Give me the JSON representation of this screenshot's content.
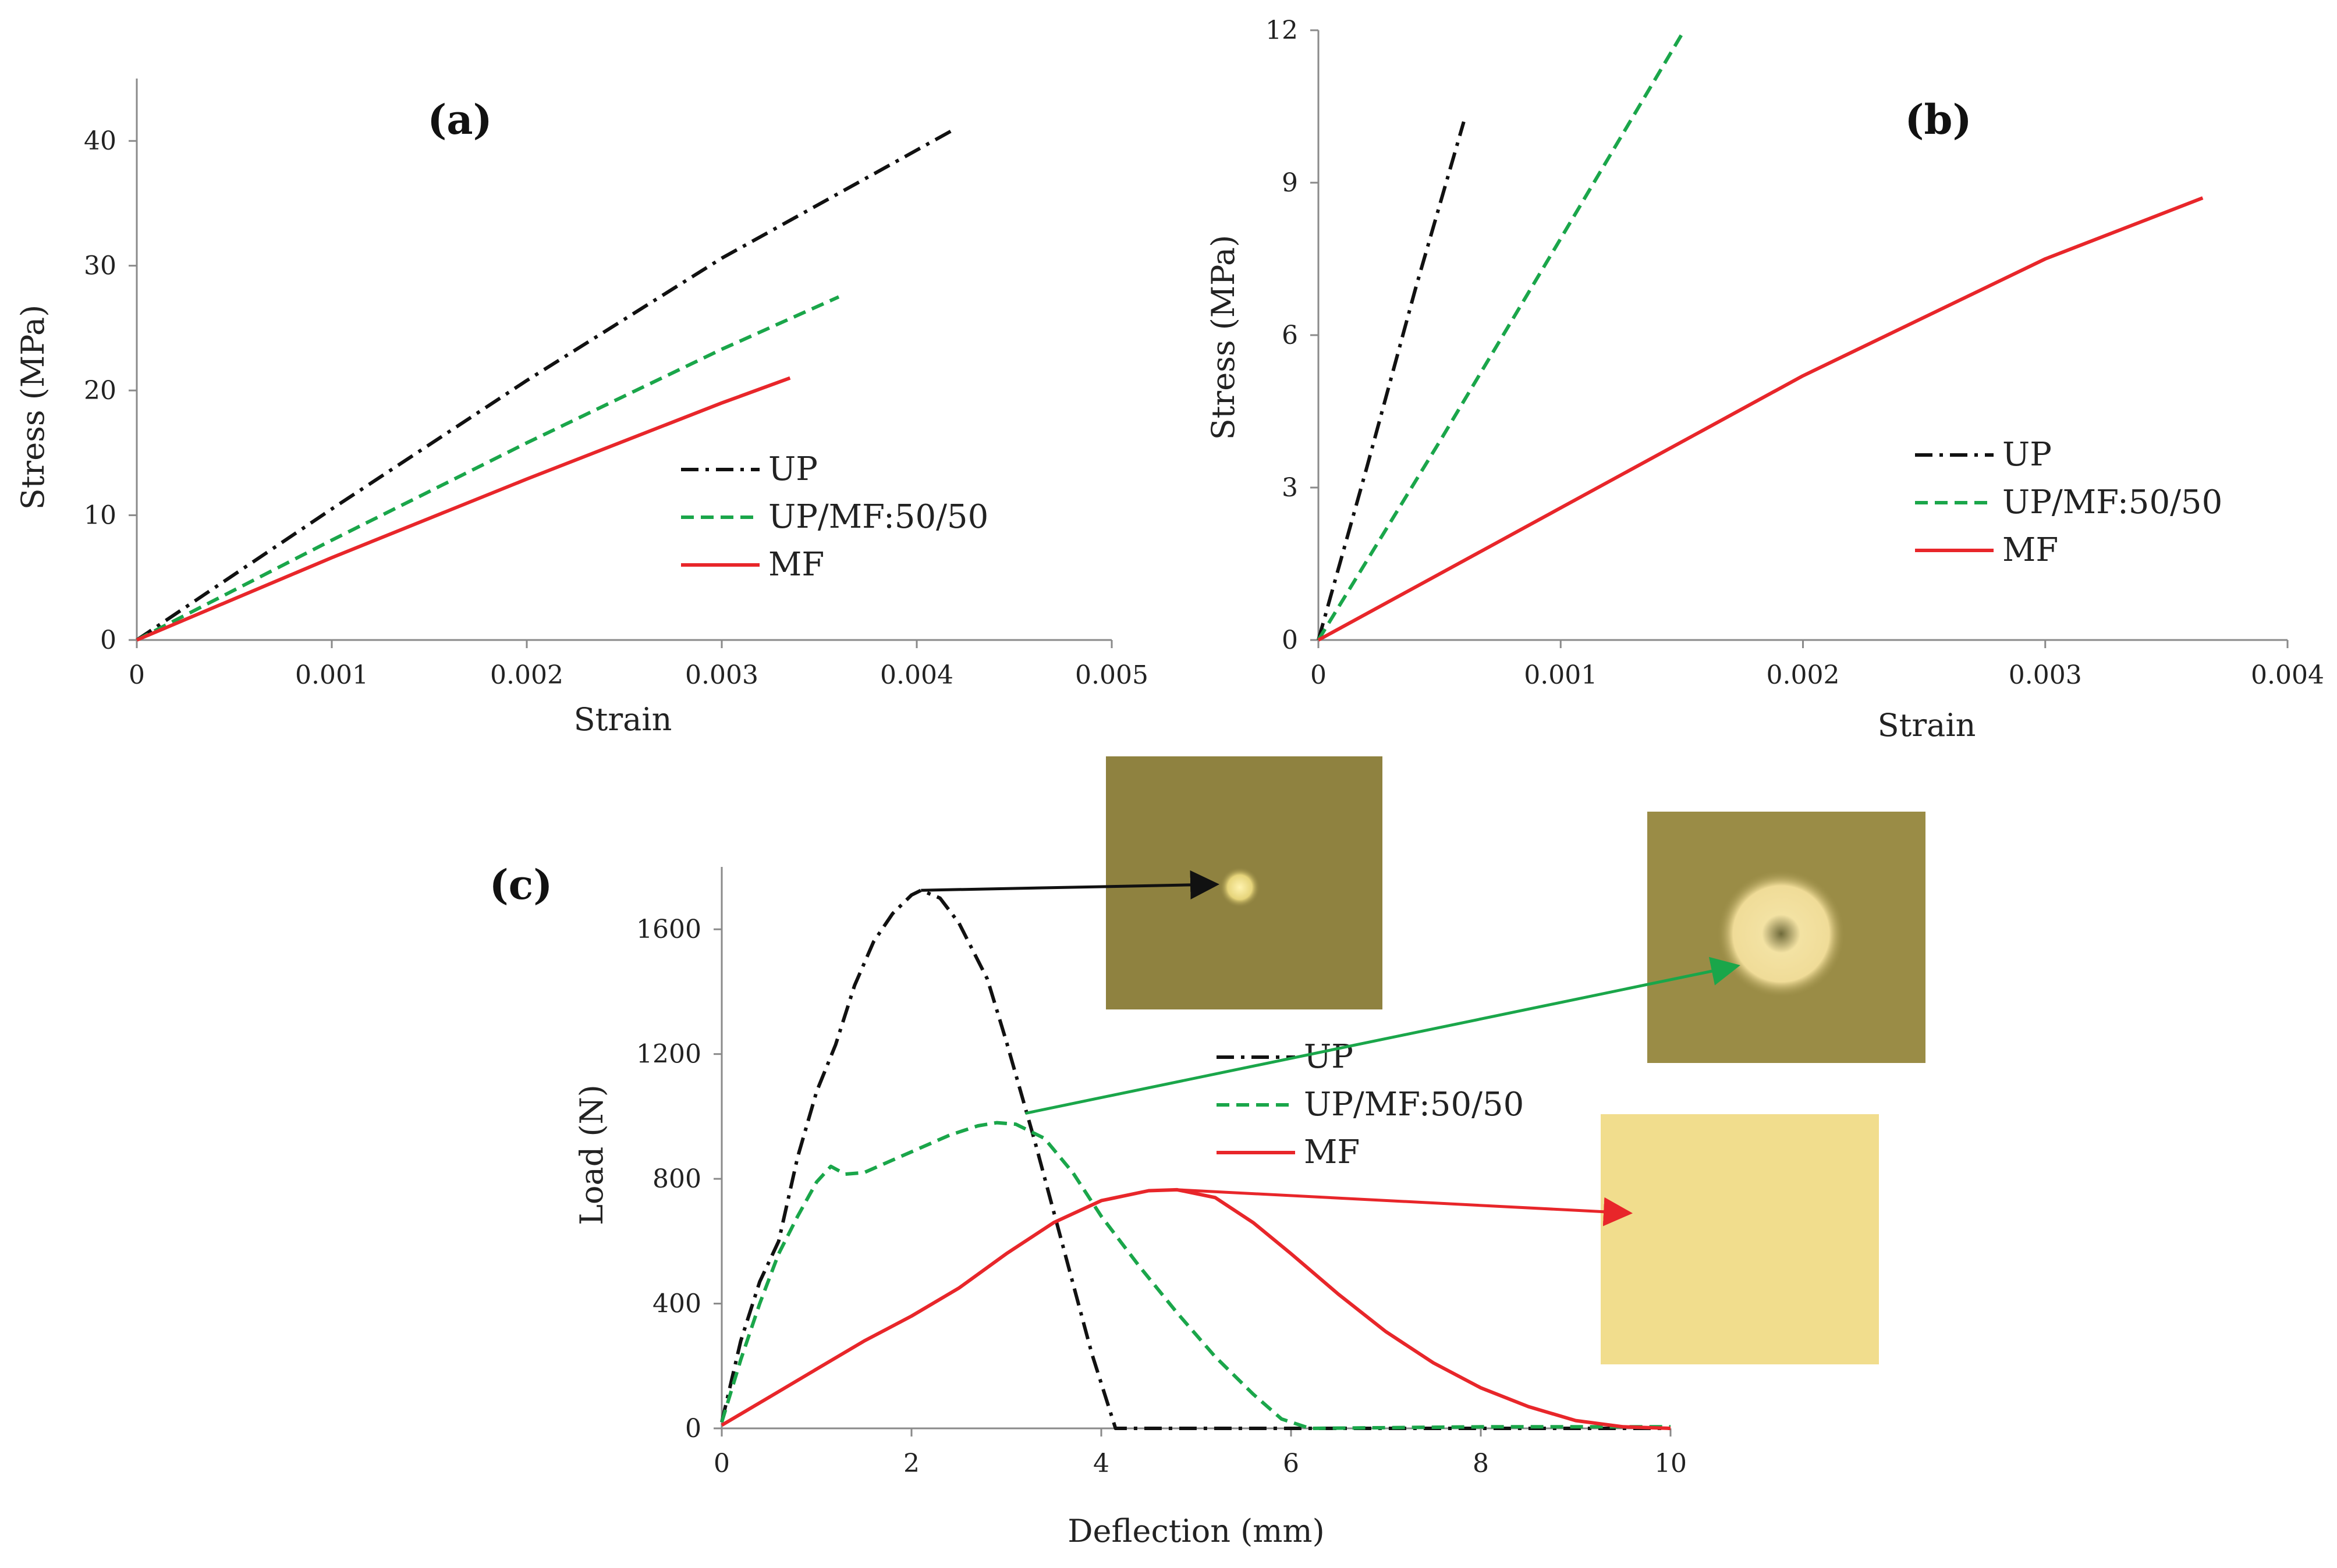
{
  "chart_data": [
    {
      "panel": "(a)",
      "type": "line",
      "xlabel": "Strain",
      "ylabel": "Stress (MPa)",
      "xlim": [
        0,
        0.005
      ],
      "ylim": [
        0,
        45
      ],
      "xticks": [
        "0",
        "0.001",
        "0.002",
        "0.003",
        "0.004",
        "0.005"
      ],
      "xtick_values": [
        0,
        0.001,
        0.002,
        0.003,
        0.004,
        0.005
      ],
      "yticks": [
        "0",
        "10",
        "20",
        "30",
        "40"
      ],
      "ytick_values": [
        0,
        10,
        20,
        30,
        40
      ],
      "grid": false,
      "legend_position": "middle-right",
      "series": [
        {
          "name": "UP",
          "color": "#111111",
          "dash": "dash-dot",
          "points": [
            [
              0,
              0
            ],
            [
              0.001,
              10.5
            ],
            [
              0.002,
              20.8
            ],
            [
              0.003,
              30.6
            ],
            [
              0.0042,
              41.0
            ]
          ]
        },
        {
          "name": "UP/MF:50/50",
          "color": "#1aa64a",
          "dash": "dashed",
          "points": [
            [
              0,
              0
            ],
            [
              0.001,
              8.0
            ],
            [
              0.002,
              15.8
            ],
            [
              0.003,
              23.3
            ],
            [
              0.0036,
              27.5
            ]
          ]
        },
        {
          "name": "MF",
          "color": "#e8262a",
          "dash": "solid",
          "points": [
            [
              0,
              0
            ],
            [
              0.001,
              6.6
            ],
            [
              0.002,
              12.9
            ],
            [
              0.003,
              19.0
            ],
            [
              0.00335,
              21.0
            ]
          ]
        }
      ]
    },
    {
      "panel": "(b)",
      "type": "line",
      "xlabel": "Strain",
      "ylabel": "Stress (MPa)",
      "xlim": [
        0,
        0.004
      ],
      "ylim": [
        0,
        12
      ],
      "xticks": [
        "0",
        "0.001",
        "0.002",
        "0.003",
        "0.004"
      ],
      "xtick_values": [
        0,
        0.001,
        0.002,
        0.003,
        0.004
      ],
      "yticks": [
        "0",
        "3",
        "6",
        "9",
        "12"
      ],
      "ytick_values": [
        0,
        3,
        6,
        9,
        12
      ],
      "grid": false,
      "legend_position": "middle-right",
      "series": [
        {
          "name": "UP",
          "color": "#111111",
          "dash": "dash-dot",
          "points": [
            [
              0,
              0
            ],
            [
              0.0002,
              3.4
            ],
            [
              0.0004,
              6.9
            ],
            [
              0.0006,
              10.2
            ]
          ]
        },
        {
          "name": "UP/MF:50/50",
          "color": "#1aa64a",
          "dash": "dashed",
          "points": [
            [
              0,
              0
            ],
            [
              0.0005,
              3.9
            ],
            [
              0.001,
              7.9
            ],
            [
              0.00151,
              12.0
            ]
          ]
        },
        {
          "name": "MF",
          "color": "#e8262a",
          "dash": "solid",
          "points": [
            [
              0,
              0
            ],
            [
              0.001,
              2.6
            ],
            [
              0.002,
              5.2
            ],
            [
              0.003,
              7.5
            ],
            [
              0.00365,
              8.7
            ]
          ]
        }
      ]
    },
    {
      "panel": "(c)",
      "type": "line",
      "xlabel": "Deflection (mm)",
      "ylabel": "Load (N)",
      "xlim": [
        0,
        10
      ],
      "ylim": [
        0,
        1800
      ],
      "xticks": [
        "0",
        "2",
        "4",
        "6",
        "8",
        "10"
      ],
      "xtick_values": [
        0,
        2,
        4,
        6,
        8,
        10
      ],
      "yticks": [
        "0",
        "400",
        "800",
        "1200",
        "1600"
      ],
      "ytick_values": [
        0,
        400,
        800,
        1200,
        1600
      ],
      "grid": false,
      "legend_position": "center-right",
      "series": [
        {
          "name": "UP",
          "color": "#111111",
          "dash": "dash-dot",
          "points": [
            [
              0,
              20
            ],
            [
              0.2,
              280
            ],
            [
              0.4,
              470
            ],
            [
              0.6,
              600
            ],
            [
              0.8,
              870
            ],
            [
              1.0,
              1080
            ],
            [
              1.2,
              1230
            ],
            [
              1.4,
              1420
            ],
            [
              1.6,
              1560
            ],
            [
              1.8,
              1650
            ],
            [
              2.0,
              1710
            ],
            [
              2.1,
              1725
            ],
            [
              2.3,
              1700
            ],
            [
              2.5,
              1620
            ],
            [
              2.8,
              1440
            ],
            [
              3.0,
              1240
            ],
            [
              3.3,
              920
            ],
            [
              3.6,
              580
            ],
            [
              3.9,
              240
            ],
            [
              4.15,
              0
            ],
            [
              4.5,
              0
            ],
            [
              10,
              0
            ]
          ]
        },
        {
          "name": "UP/MF:50/50",
          "color": "#1aa64a",
          "dash": "dashed",
          "points": [
            [
              0,
              20
            ],
            [
              0.2,
              220
            ],
            [
              0.4,
              400
            ],
            [
              0.6,
              560
            ],
            [
              0.8,
              680
            ],
            [
              1.0,
              790
            ],
            [
              1.15,
              840
            ],
            [
              1.3,
              815
            ],
            [
              1.5,
              820
            ],
            [
              1.8,
              860
            ],
            [
              2.1,
              900
            ],
            [
              2.4,
              940
            ],
            [
              2.7,
              970
            ],
            [
              2.9,
              980
            ],
            [
              3.1,
              975
            ],
            [
              3.4,
              930
            ],
            [
              3.7,
              820
            ],
            [
              4.0,
              680
            ],
            [
              4.4,
              520
            ],
            [
              4.8,
              370
            ],
            [
              5.2,
              230
            ],
            [
              5.6,
              110
            ],
            [
              5.9,
              30
            ],
            [
              6.2,
              0
            ],
            [
              8.0,
              5
            ],
            [
              10,
              5
            ]
          ]
        },
        {
          "name": "MF",
          "color": "#e8262a",
          "dash": "solid",
          "points": [
            [
              0,
              10
            ],
            [
              0.5,
              100
            ],
            [
              1.0,
              190
            ],
            [
              1.5,
              280
            ],
            [
              2.0,
              360
            ],
            [
              2.5,
              450
            ],
            [
              3.0,
              560
            ],
            [
              3.5,
              660
            ],
            [
              4.0,
              730
            ],
            [
              4.5,
              762
            ],
            [
              4.8,
              765
            ],
            [
              5.2,
              740
            ],
            [
              5.6,
              660
            ],
            [
              6.0,
              560
            ],
            [
              6.5,
              430
            ],
            [
              7.0,
              310
            ],
            [
              7.5,
              210
            ],
            [
              8.0,
              130
            ],
            [
              8.5,
              70
            ],
            [
              9.0,
              25
            ],
            [
              9.5,
              5
            ],
            [
              10,
              0
            ]
          ]
        }
      ],
      "insets": [
        {
          "name": "UP",
          "color": "#8f8240",
          "arrow_from": [
            2.1,
            1725
          ]
        },
        {
          "name": "UP/MF:50/50",
          "color": "#9a8c46",
          "arrow_from": [
            3.2,
            1010
          ]
        },
        {
          "name": "MF",
          "color": "#f1dd8d",
          "arrow_from": [
            4.8,
            765
          ]
        }
      ]
    }
  ]
}
